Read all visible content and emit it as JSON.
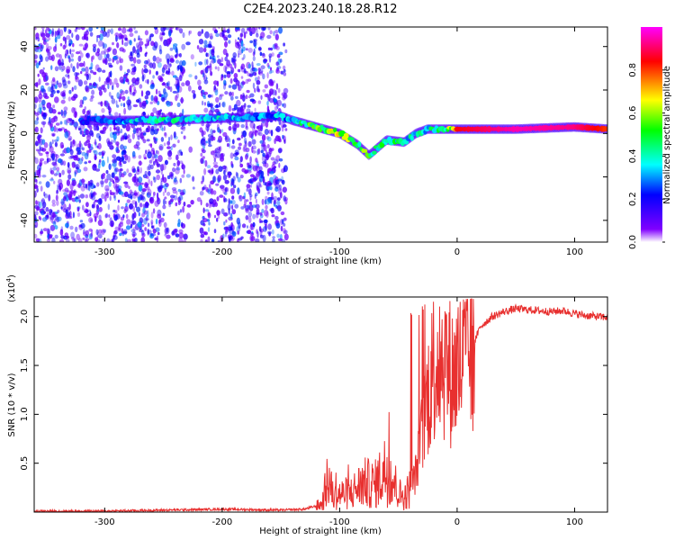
{
  "figure": {
    "title": "C2E4.2023.240.18.28.R12"
  },
  "chart_data": [
    {
      "type": "heatmap",
      "xlabel": "Height of straight line (km)",
      "ylabel": "Frequency (Hz)",
      "xlim": [
        -360,
        128
      ],
      "ylim": [
        -50,
        49
      ],
      "xticks": [
        -300,
        -200,
        -100,
        0,
        100
      ],
      "xtick_labels": [
        "-300",
        "-200",
        "-100",
        "0",
        "100"
      ],
      "yticks": [
        -40,
        -20,
        0,
        20,
        40
      ],
      "ytick_labels": [
        "-40",
        "-20",
        "0",
        "20",
        "40"
      ],
      "colorbar": {
        "label": "Normalized spectral amplitude",
        "range": [
          0,
          1
        ],
        "ticks": [
          0.0,
          0.2,
          0.4,
          0.6,
          0.8
        ],
        "tick_labels": [
          "0.0",
          "0.2",
          "0.4",
          "0.6",
          "0.8"
        ],
        "colors": [
          "#ffffff",
          "#8000ff",
          "#0000ff",
          "#00ffff",
          "#00ff00",
          "#ffff00",
          "#ff0000",
          "#ff00ff"
        ]
      },
      "main_track": {
        "x": [
          -320,
          -300,
          -250,
          -200,
          -150,
          -140,
          -120,
          -100,
          -85,
          -75,
          -60,
          -45,
          -35,
          -25,
          -10,
          0,
          50,
          100,
          128
        ],
        "frequency_hz": [
          6,
          6,
          6,
          7,
          8,
          6,
          3,
          0,
          -5,
          -10,
          -3,
          -4,
          0,
          2,
          2,
          2,
          2,
          3,
          2
        ],
        "amplitude": [
          0.25,
          0.3,
          0.45,
          0.4,
          0.35,
          0.4,
          0.6,
          0.65,
          0.6,
          0.55,
          0.5,
          0.45,
          0.4,
          0.45,
          0.5,
          0.85,
          0.95,
          0.92,
          0.8
        ]
      },
      "noise_region_x": [
        -360,
        -145
      ]
    },
    {
      "type": "line",
      "xlabel": "Height of straight line (km)",
      "ylabel": "SNR (10 * v/v)",
      "y_scale_label": "(x10",
      "y_scale_exp": "4",
      "y_scale_close": ")",
      "xlim": [
        -360,
        128
      ],
      "ylim": [
        0,
        2.2
      ],
      "xticks": [
        -300,
        -200,
        -100,
        0,
        100
      ],
      "xtick_labels": [
        "-300",
        "-200",
        "-100",
        "0",
        "100"
      ],
      "yticks": [
        0.5,
        1.0,
        1.5,
        2.0
      ],
      "ytick_labels": [
        "0.5",
        "1.0",
        "1.5",
        "2.0"
      ],
      "series": [
        {
          "color": "#e8302f",
          "x": [
            -360,
            -300,
            -250,
            -200,
            -150,
            -130,
            -115,
            -110,
            -105,
            -100,
            -90,
            -80,
            -70,
            -60,
            -55,
            -50,
            -45,
            -40,
            -35,
            -30,
            -25,
            -20,
            -15,
            -10,
            -5,
            0,
            10,
            20,
            30,
            40,
            50,
            60,
            70,
            80,
            90,
            100,
            110,
            120,
            128
          ],
          "y": [
            0.01,
            0.01,
            0.02,
            0.03,
            0.02,
            0.03,
            0.08,
            0.35,
            0.15,
            0.18,
            0.2,
            0.3,
            0.28,
            0.45,
            0.35,
            0.2,
            0.15,
            0.25,
            0.4,
            0.8,
            1.2,
            1.5,
            1.6,
            1.55,
            1.4,
            1.45,
            1.6,
            1.9,
            2.0,
            2.05,
            2.08,
            2.07,
            2.06,
            2.05,
            2.06,
            2.03,
            2.01,
            2.0,
            1.99
          ]
        }
      ]
    }
  ]
}
